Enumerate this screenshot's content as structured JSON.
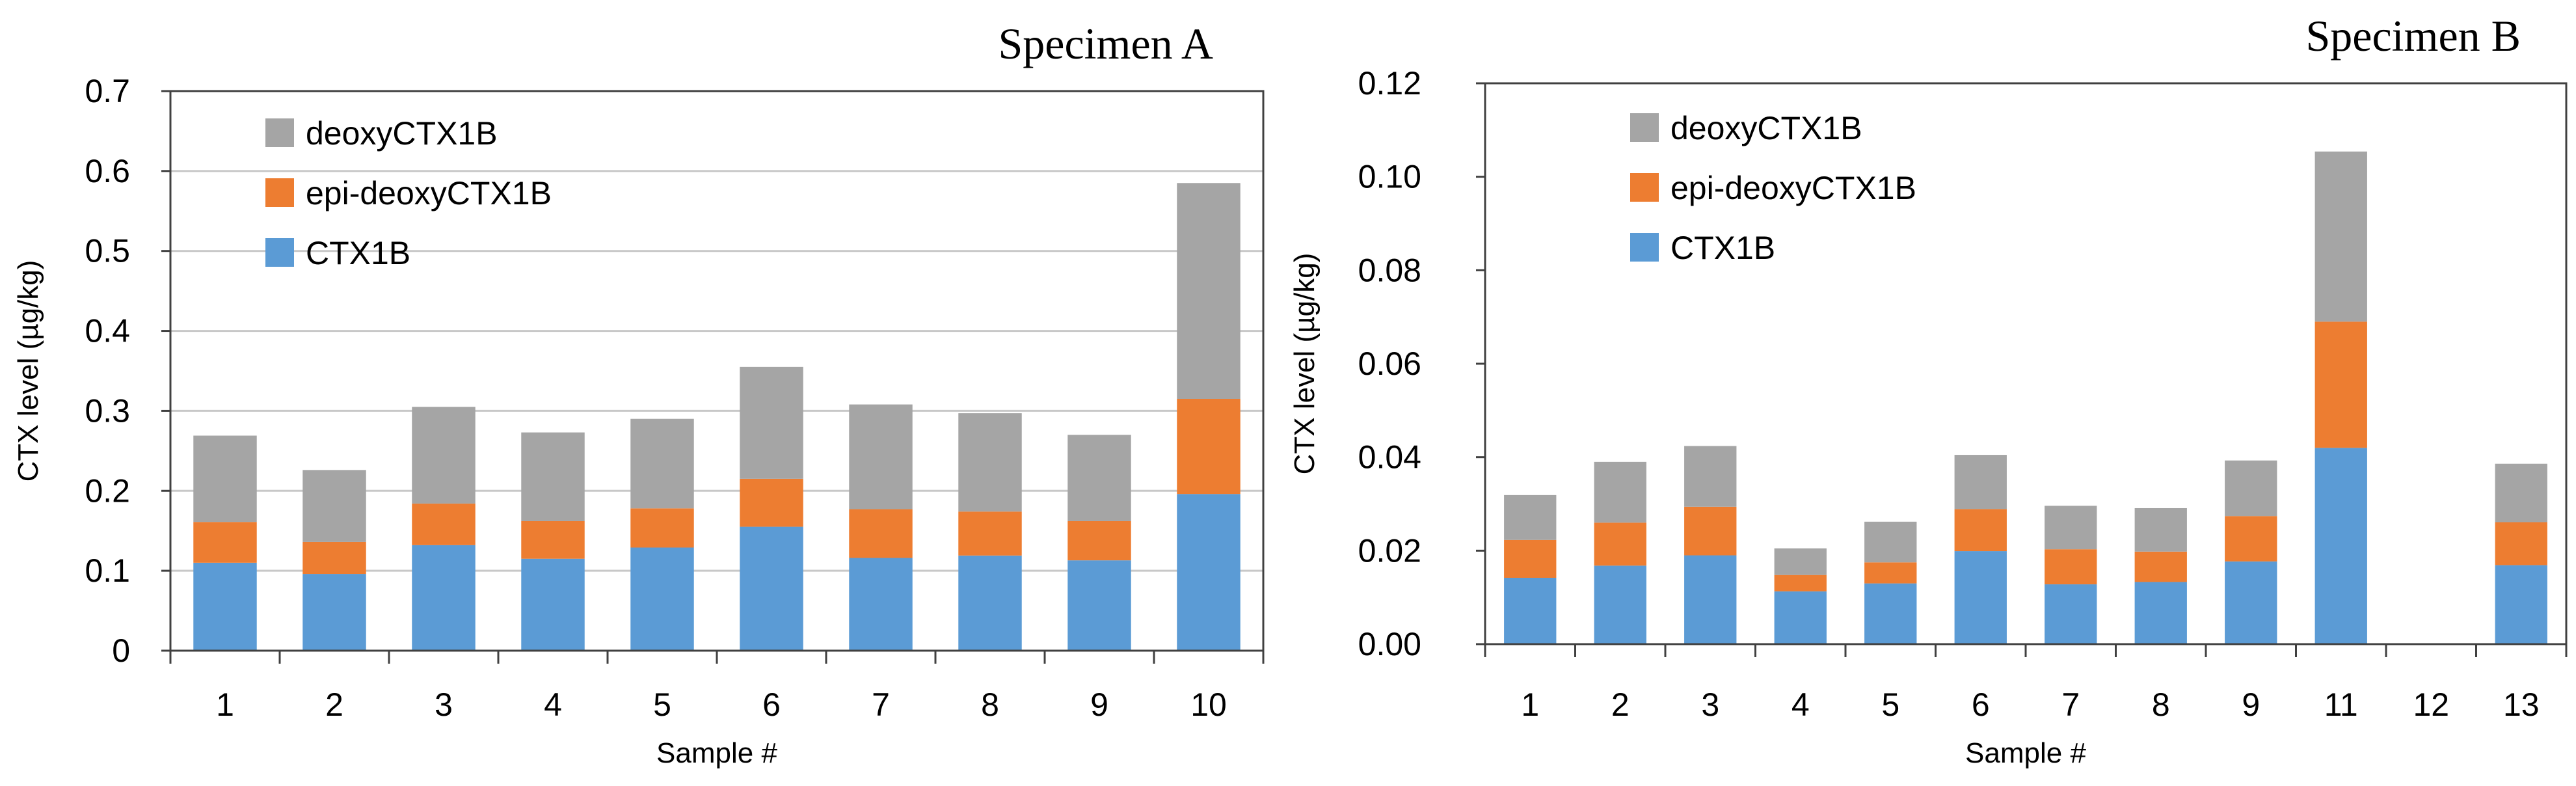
{
  "chart_data": [
    {
      "type": "bar",
      "stacked": true,
      "title": "Specimen A",
      "xlabel": "Sample #",
      "ylabel": "CTX level (µg/kg)",
      "ylim": [
        0,
        0.7
      ],
      "yticks": [
        "0",
        "0.1",
        "0.2",
        "0.3",
        "0.4",
        "0.5",
        "0.6",
        "0.7"
      ],
      "grid": true,
      "legend_position": "top-left",
      "categories": [
        "1",
        "2",
        "3",
        "4",
        "5",
        "6",
        "7",
        "8",
        "9",
        "10"
      ],
      "series": [
        {
          "name": "CTX1B",
          "color": "#5b9bd5",
          "values": [
            0.11,
            0.096,
            0.132,
            0.115,
            0.129,
            0.155,
            0.116,
            0.119,
            0.113,
            0.196
          ]
        },
        {
          "name": "epi-deoxyCTX1B",
          "color": "#ed7d31",
          "values": [
            0.051,
            0.04,
            0.052,
            0.047,
            0.049,
            0.06,
            0.061,
            0.055,
            0.049,
            0.119
          ]
        },
        {
          "name": "deoxyCTX1B",
          "color": "#a5a5a5",
          "values": [
            0.108,
            0.09,
            0.121,
            0.111,
            0.112,
            0.14,
            0.131,
            0.123,
            0.108,
            0.27
          ]
        }
      ]
    },
    {
      "type": "bar",
      "stacked": true,
      "title": "Specimen B",
      "xlabel": "Sample #",
      "ylabel": "CTX level (µg/kg)",
      "ylim": [
        0,
        0.12
      ],
      "yticks": [
        "0.00",
        "0.02",
        "0.04",
        "0.06",
        "0.08",
        "0.10",
        "0.12"
      ],
      "grid": false,
      "legend_position": "top-left",
      "categories": [
        "1",
        "2",
        "3",
        "4",
        "5",
        "6",
        "7",
        "8",
        "9",
        "11",
        "12",
        "13"
      ],
      "series": [
        {
          "name": "CTX1B",
          "color": "#5b9bd5",
          "values": [
            0.0142,
            0.0168,
            0.019,
            0.0113,
            0.013,
            0.0199,
            0.0128,
            0.0133,
            0.0177,
            0.042,
            0,
            0.0169
          ]
        },
        {
          "name": "epi-deoxyCTX1B",
          "color": "#ed7d31",
          "values": [
            0.0081,
            0.0092,
            0.0104,
            0.0035,
            0.0045,
            0.009,
            0.0075,
            0.0065,
            0.0097,
            0.027,
            0,
            0.0092
          ]
        },
        {
          "name": "deoxyCTX1B",
          "color": "#a5a5a5",
          "values": [
            0.0096,
            0.013,
            0.013,
            0.0057,
            0.0087,
            0.0116,
            0.0093,
            0.0093,
            0.0119,
            0.0364,
            0,
            0.0125
          ]
        }
      ]
    }
  ]
}
